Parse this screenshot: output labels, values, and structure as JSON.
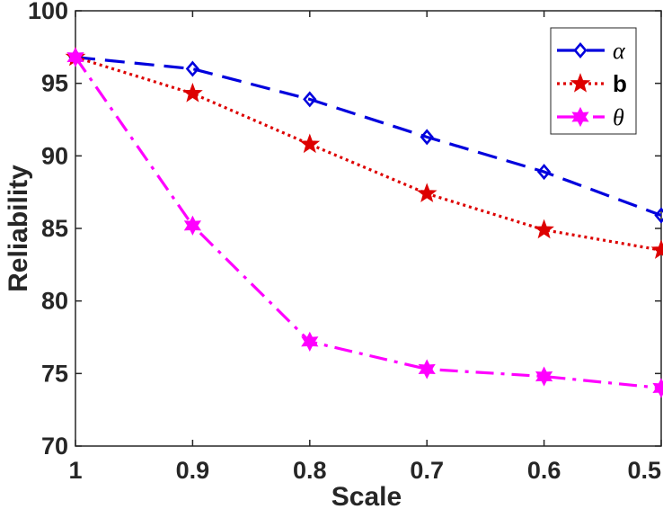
{
  "chart_data": {
    "type": "line",
    "title": "",
    "xlabel": "Scale",
    "ylabel": "Reliability",
    "x": [
      1,
      0.9,
      0.8,
      0.7,
      0.6,
      0.5
    ],
    "x_tick_labels": [
      "1",
      "0.9",
      "0.8",
      "0.7",
      "0.6",
      "0.5"
    ],
    "x_reversed": true,
    "xlim": [
      1,
      0.5
    ],
    "ylim": [
      70,
      100
    ],
    "y_ticks": [
      70,
      75,
      80,
      85,
      90,
      95,
      100
    ],
    "y_tick_labels": [
      "70",
      "75",
      "80",
      "85",
      "90",
      "95",
      "100"
    ],
    "grid": false,
    "legend_position": "top-right",
    "series": [
      {
        "name": "α",
        "color": "#0000dd",
        "line_style": "dashed",
        "marker": "diamond-open",
        "values": [
          96.8,
          96.0,
          93.9,
          91.3,
          88.9,
          85.9
        ]
      },
      {
        "name": "b",
        "color": "#dd0000",
        "line_style": "dotted",
        "marker": "pentagram-filled",
        "values": [
          96.8,
          94.3,
          90.8,
          87.4,
          84.9,
          83.5
        ]
      },
      {
        "name": "θ",
        "color": "#ff00ff",
        "line_style": "dashdot",
        "marker": "hexagram-filled",
        "values": [
          96.8,
          85.2,
          77.2,
          75.3,
          74.8,
          74.0
        ]
      }
    ]
  }
}
